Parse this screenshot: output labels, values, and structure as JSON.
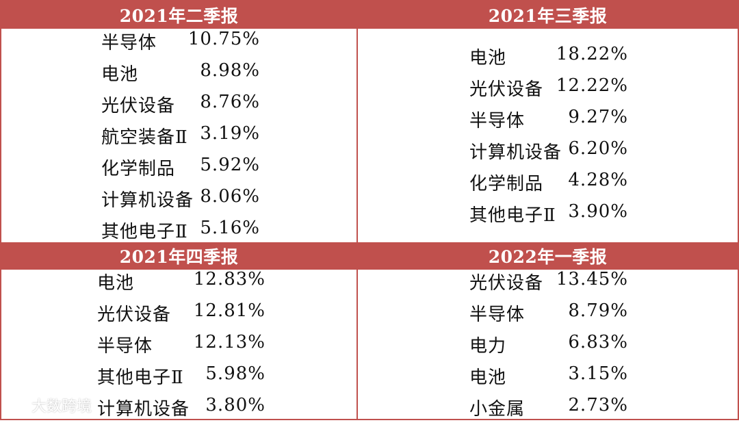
{
  "panels": [
    {
      "title": "2021年二季报",
      "rows": [
        {
          "name": "半导体",
          "value": "10.75%"
        },
        {
          "name": "电池",
          "value": "8.98%"
        },
        {
          "name": "光伏设备",
          "value": "8.76%"
        },
        {
          "name": "航空装备Ⅱ",
          "value": "3.19%"
        },
        {
          "name": "化学制品",
          "value": "5.92%"
        },
        {
          "name": "计算机设备",
          "value": "8.06%"
        },
        {
          "name": "其他电子Ⅱ",
          "value": "5.16%"
        }
      ]
    },
    {
      "title": "2021年三季报",
      "rows": [
        {
          "name": "电池",
          "value": "18.22%"
        },
        {
          "name": "光伏设备",
          "value": "12.22%"
        },
        {
          "name": "半导体",
          "value": "9.27%"
        },
        {
          "name": "计算机设备",
          "value": "6.20%"
        },
        {
          "name": "化学制品",
          "value": "4.28%"
        },
        {
          "name": "其他电子Ⅱ",
          "value": "3.90%"
        }
      ]
    },
    {
      "title": "2021年四季报",
      "rows": [
        {
          "name": "电池",
          "value": "12.83%"
        },
        {
          "name": "光伏设备",
          "value": "12.81%"
        },
        {
          "name": "半导体",
          "value": "12.13%"
        },
        {
          "name": "其他电子Ⅱ",
          "value": "5.98%"
        },
        {
          "name": "计算机设备",
          "value": "3.80%"
        }
      ]
    },
    {
      "title": "2022年一季报",
      "rows": [
        {
          "name": "光伏设备",
          "value": "13.45%"
        },
        {
          "name": "半导体",
          "value": "8.79%"
        },
        {
          "name": "电力",
          "value": "6.83%"
        },
        {
          "name": "电池",
          "value": "3.15%"
        },
        {
          "name": "小金属",
          "value": "2.73%"
        }
      ]
    }
  ],
  "watermark": {
    "text": "大数跨境"
  },
  "colors": {
    "accent": "#c0504d",
    "text": "#111111",
    "background": "#ffffff"
  }
}
